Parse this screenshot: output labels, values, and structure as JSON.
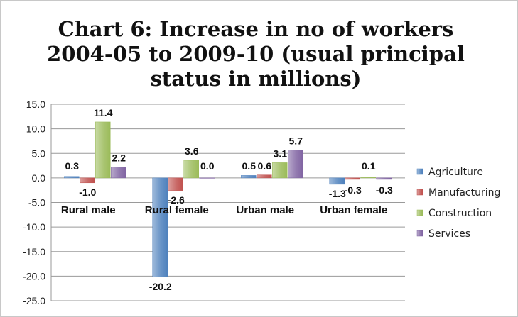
{
  "chart_data": {
    "type": "bar",
    "title_lines": [
      "Chart 6: Increase in no of workers",
      "2004-05 to 2009-10 (usual principal",
      "status in millions)"
    ],
    "categories": [
      "Rural male",
      "Rural female",
      "Urban male",
      "Urban female"
    ],
    "series": [
      {
        "name": "Agriculture",
        "values": [
          0.3,
          -20.2,
          0.5,
          -1.3
        ],
        "color": "#4f81bd",
        "labels": [
          "0.3",
          "-20.2",
          "0.5",
          "-1.3"
        ]
      },
      {
        "name": "Manufacturing",
        "values": [
          -1.0,
          -2.6,
          0.6,
          -0.3
        ],
        "color": "#c0504d",
        "labels": [
          "-1.0",
          "-2.6",
          "0.6",
          "-0.3"
        ]
      },
      {
        "name": "Construction",
        "values": [
          11.4,
          3.6,
          3.1,
          0.1
        ],
        "color": "#9bbb59",
        "labels": [
          "11.4",
          "3.6",
          "3.1",
          "0.1"
        ]
      },
      {
        "name": "Services",
        "values": [
          2.2,
          0.0,
          5.7,
          -0.3
        ],
        "color": "#8064a2",
        "labels": [
          "2.2",
          "0.0",
          "5.7",
          "-0.3"
        ]
      }
    ],
    "ylim": [
      -25,
      15
    ],
    "yticks": [
      15,
      10,
      5,
      0,
      -5,
      -10,
      -15,
      -20,
      -25
    ],
    "ytick_labels": [
      "15.0",
      "10.0",
      "5.0",
      "0.0",
      "-5.0",
      "-10.0",
      "-15.0",
      "-20.0",
      "-25.0"
    ],
    "grid": true,
    "legend_position": "right"
  }
}
